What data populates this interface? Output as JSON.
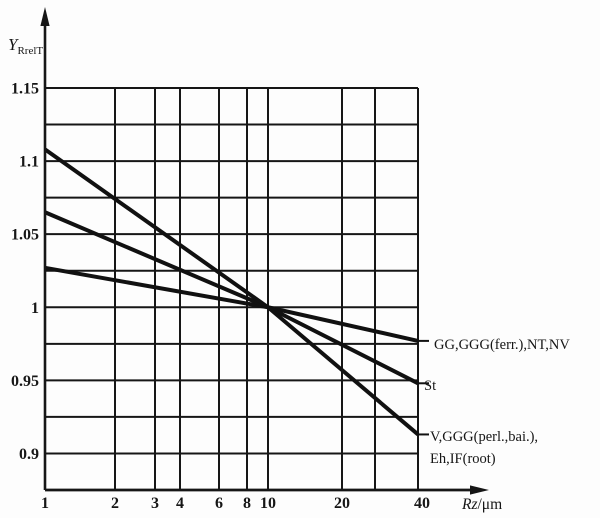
{
  "figure": {
    "background": "#fdfdfd",
    "ink_color": "#161616",
    "curve_color": "#111111"
  },
  "chart_data": {
    "type": "line",
    "title": "",
    "grid": true,
    "legend_position": "right-of-plot",
    "x_axis": {
      "label": "Rz/μm",
      "label_main": "Rz",
      "label_suffix": "/μm",
      "scale": "log",
      "range": [
        1,
        40
      ],
      "gridline_values": [
        1,
        2,
        3,
        4,
        6,
        8,
        10,
        20,
        30,
        40
      ],
      "tick_values": [
        1,
        2,
        3,
        4,
        6,
        8,
        10,
        20,
        40
      ],
      "tick_labels": [
        "1",
        "2",
        "3",
        "4",
        "6",
        "8",
        "10",
        "20",
        "40"
      ]
    },
    "y_axis": {
      "label": "YRrelT",
      "label_main": "Y",
      "label_sub": "RrelT",
      "scale": "linear",
      "range": [
        0.875,
        1.15
      ],
      "gridline_step": 0.025,
      "tick_values": [
        1.15,
        1.1,
        1.05,
        1,
        0.95,
        0.9
      ],
      "tick_labels": [
        "1.15",
        "1.1",
        "1.05",
        "1",
        "0.95",
        "0.9"
      ]
    },
    "convergence_point": [
      10,
      1.0
    ],
    "series": [
      {
        "name": "GG,GGG(ferr.),NT,NV",
        "label": "GG,GGG(ferr.),NT,NV",
        "points": [
          [
            1,
            1.027
          ],
          [
            10,
            1.0
          ],
          [
            40,
            0.977
          ]
        ]
      },
      {
        "name": "St",
        "label": "St",
        "points": [
          [
            1,
            1.065
          ],
          [
            10,
            1.0
          ],
          [
            40,
            0.948
          ]
        ]
      },
      {
        "name": "V,GGG(perl.,bai.),Eh,IF(root)",
        "label_line1": "V,GGG(perl.,bai.),",
        "label_line2": "Eh,IF(root)",
        "points": [
          [
            1,
            1.108
          ],
          [
            10,
            1.0
          ],
          [
            40,
            0.913
          ]
        ]
      }
    ]
  }
}
